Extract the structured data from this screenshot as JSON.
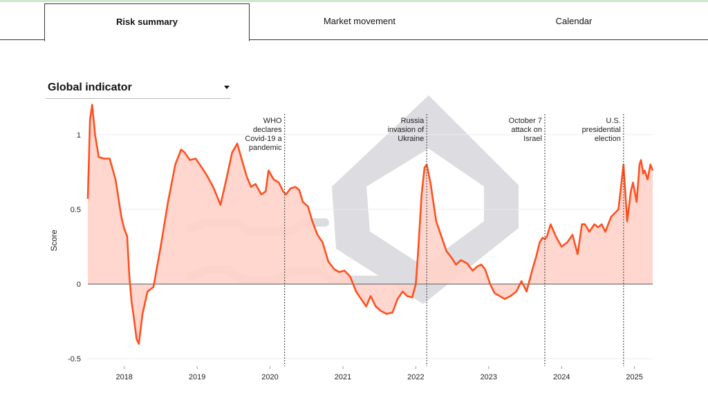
{
  "tabs": [
    {
      "label": "Risk summary",
      "active": true
    },
    {
      "label": "Market movement",
      "active": false
    },
    {
      "label": "Calendar",
      "active": false
    }
  ],
  "dropdown": {
    "selected": "Global indicator"
  },
  "colors": {
    "line": "#ff4f1f",
    "fill": "#ffd3c9",
    "zero": "#888888",
    "grid": "#eeeeee",
    "event": "#555555"
  },
  "chart_data": {
    "type": "area",
    "title": "",
    "xlabel": "",
    "ylabel": "Score",
    "xlim": [
      2017.5,
      2025.25
    ],
    "ylim": [
      -0.55,
      1.3
    ],
    "grid": true,
    "yticks": [
      -0.5,
      0,
      0.5,
      1
    ],
    "ytick_labels": [
      "-0.5",
      "0",
      "0.5",
      "1"
    ],
    "xticks": [
      2018,
      2019,
      2020,
      2021,
      2022,
      2023,
      2024,
      2025
    ],
    "xtick_labels": [
      "2018",
      "2019",
      "2020",
      "2021",
      "2022",
      "2023",
      "2024",
      "2025"
    ],
    "series": [
      {
        "x": [
          2017.5,
          2017.53,
          2017.56,
          2017.6,
          2017.65,
          2017.72,
          2017.8,
          2017.88,
          2017.96,
          2018.0,
          2018.04,
          2018.07,
          2018.1,
          2018.13,
          2018.17,
          2018.2,
          2018.25,
          2018.32,
          2018.4,
          2018.5,
          2018.6,
          2018.7,
          2018.78,
          2018.83,
          2018.9,
          2018.98,
          2019.05,
          2019.13,
          2019.22,
          2019.32,
          2019.4,
          2019.48,
          2019.55,
          2019.62,
          2019.68,
          2019.74,
          2019.8,
          2019.88,
          2019.94,
          2019.98,
          2020.05,
          2020.12,
          2020.18,
          2020.22,
          2020.28,
          2020.35,
          2020.4,
          2020.45,
          2020.52,
          2020.58,
          2020.65,
          2020.72,
          2020.8,
          2020.88,
          2020.95,
          2021.02,
          2021.1,
          2021.18,
          2021.25,
          2021.32,
          2021.38,
          2021.45,
          2021.52,
          2021.6,
          2021.68,
          2021.75,
          2021.82,
          2021.88,
          2021.95,
          2022.0,
          2022.03,
          2022.08,
          2022.12,
          2022.15,
          2022.2,
          2022.28,
          2022.35,
          2022.42,
          2022.5,
          2022.55,
          2022.62,
          2022.7,
          2022.78,
          2022.85,
          2022.9,
          2022.95,
          2023.02,
          2023.08,
          2023.15,
          2023.22,
          2023.3,
          2023.38,
          2023.45,
          2023.52,
          2023.6,
          2023.65,
          2023.7,
          2023.74,
          2023.77,
          2023.8,
          2023.85,
          2023.92,
          2024.0,
          2024.08,
          2024.15,
          2024.22,
          2024.28,
          2024.32,
          2024.38,
          2024.45,
          2024.5,
          2024.55,
          2024.6,
          2024.68,
          2024.72,
          2024.78,
          2024.85,
          2024.9,
          2024.95,
          2024.98,
          2025.03,
          2025.07,
          2025.09,
          2025.12,
          2025.14,
          2025.18,
          2025.22,
          2025.25
        ],
        "y": [
          0.57,
          1.1,
          1.2,
          1.0,
          0.85,
          0.84,
          0.84,
          0.7,
          0.45,
          0.37,
          0.32,
          0.05,
          -0.12,
          -0.22,
          -0.37,
          -0.4,
          -0.2,
          -0.05,
          -0.02,
          0.25,
          0.55,
          0.8,
          0.9,
          0.88,
          0.83,
          0.84,
          0.79,
          0.73,
          0.65,
          0.53,
          0.7,
          0.88,
          0.94,
          0.82,
          0.72,
          0.65,
          0.67,
          0.6,
          0.62,
          0.76,
          0.7,
          0.68,
          0.62,
          0.6,
          0.64,
          0.65,
          0.63,
          0.55,
          0.52,
          0.42,
          0.33,
          0.28,
          0.15,
          0.1,
          0.08,
          0.09,
          0.05,
          -0.05,
          -0.1,
          -0.15,
          -0.08,
          -0.15,
          -0.18,
          -0.2,
          -0.19,
          -0.1,
          -0.05,
          -0.08,
          -0.09,
          0.0,
          0.2,
          0.6,
          0.78,
          0.8,
          0.68,
          0.42,
          0.32,
          0.22,
          0.17,
          0.13,
          0.16,
          0.14,
          0.09,
          0.12,
          0.13,
          0.1,
          0.0,
          -0.06,
          -0.08,
          -0.1,
          -0.08,
          -0.05,
          0.02,
          -0.05,
          0.1,
          0.18,
          0.28,
          0.31,
          0.3,
          0.32,
          0.4,
          0.32,
          0.25,
          0.28,
          0.33,
          0.2,
          0.4,
          0.4,
          0.35,
          0.4,
          0.38,
          0.4,
          0.35,
          0.45,
          0.47,
          0.5,
          0.8,
          0.42,
          0.62,
          0.68,
          0.55,
          0.8,
          0.83,
          0.74,
          0.76,
          0.7,
          0.8,
          0.76
        ]
      }
    ],
    "events": [
      {
        "x": 2020.2,
        "lines": [
          "WHO",
          "declares",
          "Covid-19 a",
          "pandemic"
        ]
      },
      {
        "x": 2022.15,
        "lines": [
          "Russia",
          "invasion of",
          "Ukraine"
        ]
      },
      {
        "x": 2023.77,
        "lines": [
          "October 7",
          "attack on",
          "Israel"
        ]
      },
      {
        "x": 2024.85,
        "lines": [
          "U.S.",
          "presidential",
          "election"
        ]
      }
    ]
  }
}
